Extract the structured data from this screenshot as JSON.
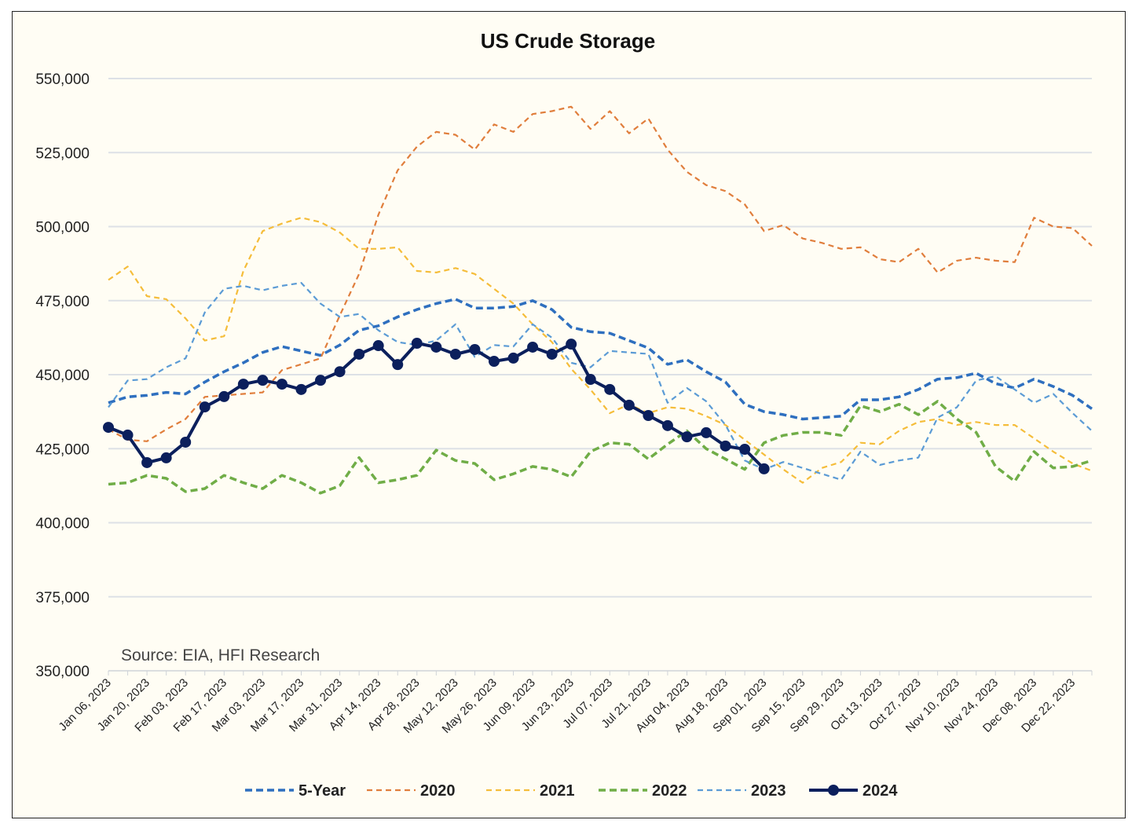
{
  "chart_data": {
    "type": "line",
    "title": "US Crude Storage",
    "annotation": "Source: EIA, HFI Research",
    "xlabel": "",
    "ylabel": "",
    "ylim": [
      350000,
      550000
    ],
    "yticks": [
      350000,
      375000,
      400000,
      425000,
      450000,
      475000,
      500000,
      525000,
      550000
    ],
    "ytick_labels": [
      "350,000",
      "375,000",
      "400,000",
      "425,000",
      "450,000",
      "475,000",
      "500,000",
      "525,000",
      "550,000"
    ],
    "xtick_labels": [
      "Jan 06, 2023",
      "Jan 20, 2023",
      "Feb 03, 2023",
      "Feb 17, 2023",
      "Mar 03, 2023",
      "Mar 17, 2023",
      "Mar 31, 2023",
      "Apr 14, 2023",
      "Apr 28, 2023",
      "May 12, 2023",
      "May 26, 2023",
      "Jun 09, 2023",
      "Jun 23, 2023",
      "Jul 07, 2023",
      "Jul 21, 2023",
      "Aug 04, 2023",
      "Aug 18, 2023",
      "Sep 01, 2023",
      "Sep 15, 2023",
      "Sep 29, 2023",
      "Oct 13, 2023",
      "Oct 27, 2023",
      "Nov 10, 2023",
      "Nov 24, 2023",
      "Dec 08, 2023",
      "Dec 22, 2023"
    ],
    "weeks": 52,
    "grid": true,
    "legend_position": "bottom",
    "series": [
      {
        "name": "5-Year",
        "color": "#2e6fbf",
        "style": "dashed-thick",
        "values": [
          440500,
          442500,
          443000,
          444000,
          443500,
          447500,
          451000,
          454000,
          457500,
          459500,
          458000,
          456500,
          460000,
          465000,
          466500,
          469500,
          472000,
          474000,
          475500,
          472500,
          472500,
          473000,
          475000,
          472000,
          466000,
          464500,
          464000,
          461500,
          459000,
          453500,
          455000,
          451000,
          447500,
          440000,
          437500,
          436500,
          435000,
          435500,
          436000,
          441500,
          441500,
          442500,
          445000,
          448500,
          449000,
          450500,
          447000,
          445500,
          448500,
          446000,
          443000,
          438500
        ]
      },
      {
        "name": "2020",
        "color": "#e07e3c",
        "style": "dashed",
        "values": [
          431500,
          428000,
          427500,
          431500,
          435000,
          442500,
          443000,
          443500,
          444000,
          451500,
          453500,
          455500,
          470000,
          484000,
          504000,
          519000,
          527000,
          532000,
          531000,
          526000,
          534500,
          532000,
          538000,
          539000,
          540500,
          533000,
          539000,
          531500,
          536500,
          526000,
          518500,
          514000,
          512000,
          507500,
          498500,
          500500,
          496000,
          494500,
          492500,
          493000,
          489000,
          488000,
          492500,
          484500,
          488500,
          489500,
          488500,
          488000,
          503000,
          500000,
          499500,
          493500
        ]
      },
      {
        "name": "2021",
        "color": "#f5bd3a",
        "style": "dashed",
        "values": [
          482000,
          486500,
          476500,
          475500,
          469000,
          461500,
          463000,
          485000,
          498500,
          501000,
          503000,
          501500,
          498000,
          492500,
          492500,
          493000,
          485000,
          484500,
          486000,
          484000,
          479000,
          474000,
          467000,
          461000,
          452000,
          445000,
          437000,
          440000,
          437000,
          439000,
          438500,
          436000,
          433000,
          428000,
          423000,
          418000,
          413500,
          418500,
          420500,
          427000,
          426500,
          431000,
          434000,
          435000,
          433000,
          434000,
          433000,
          433000,
          428500,
          424000,
          420000,
          417500
        ]
      },
      {
        "name": "2022",
        "color": "#70ad47",
        "style": "dashed-thick",
        "values": [
          413000,
          413500,
          416000,
          415000,
          410500,
          411500,
          416000,
          413500,
          411500,
          416000,
          413500,
          410000,
          412500,
          422000,
          413500,
          414500,
          416000,
          424500,
          421000,
          420000,
          414500,
          416500,
          419000,
          418000,
          415500,
          424000,
          427000,
          426500,
          421500,
          426500,
          431000,
          425000,
          421500,
          418000,
          427000,
          429500,
          430500,
          430500,
          429500,
          439500,
          437500,
          440000,
          436500,
          441000,
          435000,
          430500,
          419000,
          414000,
          424000,
          418500,
          419000,
          421000
        ]
      },
      {
        "name": "2023",
        "color": "#5b9bd5",
        "style": "dashed",
        "values": [
          439000,
          448000,
          448500,
          452500,
          455500,
          471000,
          479000,
          480000,
          478500,
          480000,
          481000,
          474000,
          469500,
          470500,
          465000,
          461000,
          460000,
          461500,
          467000,
          456000,
          460000,
          459500,
          467000,
          462500,
          454000,
          452500,
          458000,
          457500,
          457000,
          440500,
          445500,
          441000,
          433000,
          421000,
          418000,
          420500,
          418500,
          416500,
          414500,
          424000,
          419500,
          421000,
          422000,
          435500,
          439000,
          448000,
          449500,
          445000,
          440500,
          443500,
          437000,
          431000
        ]
      },
      {
        "name": "2024",
        "color": "#0b1f5c",
        "style": "solid-markers",
        "values": [
          432200,
          429600,
          420300,
          421900,
          427200,
          439100,
          442600,
          446800,
          448100,
          446800,
          445000,
          448100,
          451000,
          456900,
          459800,
          453400,
          460600,
          459300,
          456900,
          458500,
          454500,
          455600,
          459300,
          456900,
          460300,
          448400,
          445000,
          439700,
          436200,
          432800,
          429000,
          430400,
          425900,
          424800,
          418200
        ]
      }
    ]
  }
}
